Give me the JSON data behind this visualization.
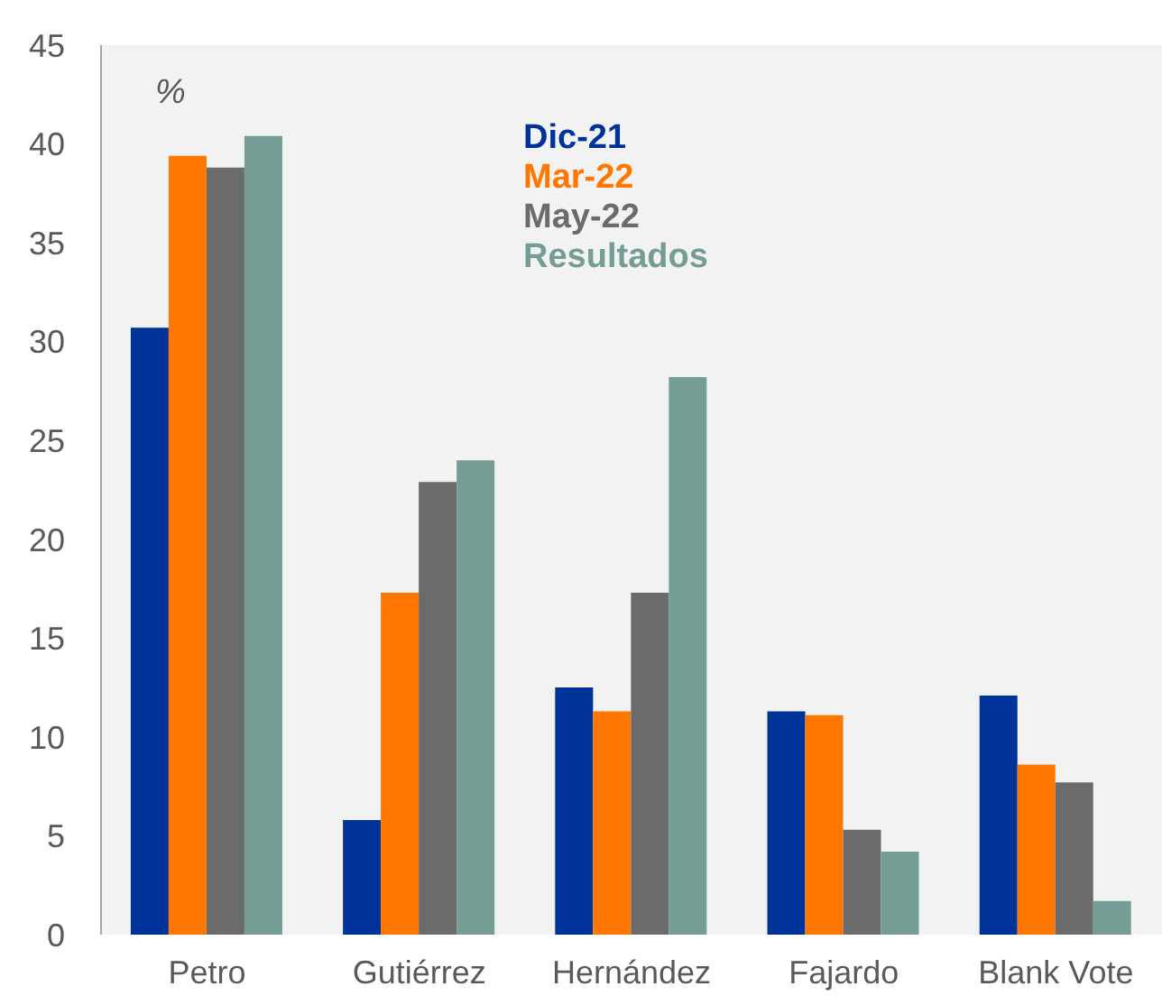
{
  "chart_data": {
    "type": "bar",
    "ylabel": "%",
    "categories": [
      "Petro",
      "Gutiérrez",
      "Hernández",
      "Fajardo",
      "Blank Vote"
    ],
    "series": [
      {
        "name": "Dic-21",
        "color": "#003399",
        "values": [
          30.7,
          5.8,
          12.5,
          11.3,
          12.1
        ]
      },
      {
        "name": "Mar-22",
        "color": "#ff7700",
        "values": [
          39.4,
          17.3,
          11.3,
          11.1,
          8.6
        ]
      },
      {
        "name": "May-22",
        "color": "#6b6b6b",
        "values": [
          38.8,
          22.9,
          17.3,
          5.3,
          7.7
        ]
      },
      {
        "name": "Resultados",
        "color": "#749e95",
        "values": [
          40.4,
          24.0,
          28.2,
          4.2,
          1.7
        ]
      }
    ],
    "ylim": [
      0,
      45
    ],
    "yticks": [
      0,
      5,
      10,
      15,
      20,
      25,
      30,
      35,
      40,
      45
    ],
    "grid": false,
    "legend": "top"
  }
}
